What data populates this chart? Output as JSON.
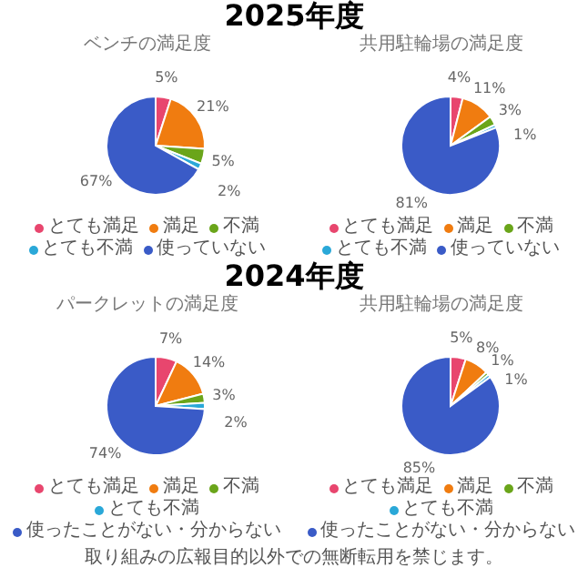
{
  "chart_data": [
    {
      "type": "pie",
      "title": "ベンチの満足度",
      "annotations": [
        "2025年度"
      ],
      "categories": [
        "とても満足",
        "満足",
        "不満",
        "とても不満",
        "使っていない"
      ],
      "values": [
        5,
        21,
        5,
        2,
        67
      ],
      "value_labels": [
        "5%",
        "21%",
        "5%",
        "2%",
        "67%"
      ],
      "colors": [
        "#e8466e",
        "#f07c10",
        "#6aa51a",
        "#2aa8d8",
        "#3a5bc7"
      ],
      "legend": "bottom"
    },
    {
      "type": "pie",
      "title": "共用駐輪場の満足度",
      "categories": [
        "とても満足",
        "満足",
        "不満",
        "とても不満",
        "使っていない"
      ],
      "values": [
        4,
        11,
        3,
        1,
        81
      ],
      "value_labels": [
        "4%",
        "11%",
        "3%",
        "1%",
        "81%"
      ],
      "colors": [
        "#e8466e",
        "#f07c10",
        "#6aa51a",
        "#2aa8d8",
        "#3a5bc7"
      ],
      "legend": "bottom"
    },
    {
      "type": "pie",
      "title": "パークレットの満足度",
      "annotations": [
        "2024年度",
        "取り組みの広報目的以外での無断転用を禁じます。"
      ],
      "categories": [
        "とても満足",
        "満足",
        "不満",
        "とても不満",
        "使ったことがない・分からない"
      ],
      "values": [
        7,
        14,
        3,
        2,
        74
      ],
      "value_labels": [
        "7%",
        "14%",
        "3%",
        "2%",
        "74%"
      ],
      "colors": [
        "#e8466e",
        "#f07c10",
        "#6aa51a",
        "#2aa8d8",
        "#3a5bc7"
      ],
      "legend": "bottom"
    },
    {
      "type": "pie",
      "title": "共用駐輪場の満足度",
      "categories": [
        "とても満足",
        "満足",
        "不満",
        "とても不満",
        "使ったことがない・分からない"
      ],
      "values": [
        5,
        8,
        1,
        1,
        85
      ],
      "value_labels": [
        "5%",
        "8%",
        "1%",
        "1%",
        "85%"
      ],
      "colors": [
        "#e8466e",
        "#f07c10",
        "#6aa51a",
        "#2aa8d8",
        "#3a5bc7"
      ],
      "legend": "bottom"
    }
  ]
}
